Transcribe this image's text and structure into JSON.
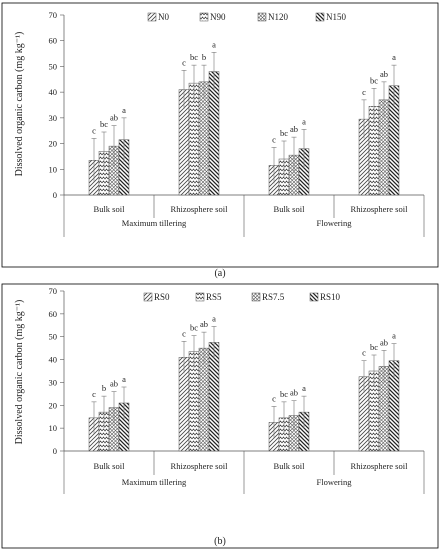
{
  "chart_data": [
    {
      "type": "bar",
      "panel_label": "(a)",
      "ylabel": "Dissolved organic carbon (mg kg⁻¹)",
      "ylim": [
        0,
        70
      ],
      "yticks": [
        0,
        10,
        20,
        30,
        40,
        50,
        60,
        70
      ],
      "categories": [
        "Bulk soil",
        "Rhizosphere soil",
        "Bulk soil",
        "Rhizosphere soil"
      ],
      "groups": [
        {
          "label": "Maximum tillering",
          "span": [
            0,
            1
          ]
        },
        {
          "label": "Flowering",
          "span": [
            2,
            3
          ]
        }
      ],
      "legend_position": "top-right",
      "series": [
        {
          "name": "N0",
          "pattern": "diag-left",
          "values": [
            13.5,
            41,
            11.5,
            29.5
          ],
          "errors": [
            8.5,
            7.5,
            7,
            7.5
          ],
          "letters": [
            "c",
            "c",
            "c",
            "c"
          ]
        },
        {
          "name": "N90",
          "pattern": "zigzag",
          "values": [
            17,
            43.5,
            14,
            34.5
          ],
          "errors": [
            7.5,
            7,
            7,
            7
          ],
          "letters": [
            "bc",
            "bc",
            "bc",
            "bc"
          ]
        },
        {
          "name": "N120",
          "pattern": "grid",
          "values": [
            19,
            44,
            15.5,
            37
          ],
          "errors": [
            8,
            6.5,
            7,
            7
          ],
          "letters": [
            "ab",
            "b",
            "ab",
            "ab"
          ]
        },
        {
          "name": "N150",
          "pattern": "diag-right",
          "values": [
            21.5,
            48,
            18,
            42.5
          ],
          "errors": [
            8.5,
            7.5,
            7.5,
            8
          ],
          "letters": [
            "a",
            "a",
            "a",
            "a"
          ]
        }
      ]
    },
    {
      "type": "bar",
      "panel_label": "(b)",
      "ylabel": "Dissolved organic carbon (mg kg⁻¹)",
      "ylim": [
        0,
        70
      ],
      "yticks": [
        0,
        10,
        20,
        30,
        40,
        50,
        60,
        70
      ],
      "categories": [
        "Bulk soil",
        "Rhizosphere soil",
        "Bulk soil",
        "Rhizosphere soil"
      ],
      "groups": [
        {
          "label": "Maximum tillering",
          "span": [
            0,
            1
          ]
        },
        {
          "label": "Flowering",
          "span": [
            2,
            3
          ]
        }
      ],
      "legend_position": "top",
      "series": [
        {
          "name": "RS0",
          "pattern": "diag-left",
          "values": [
            14.5,
            41,
            12.5,
            32.5
          ],
          "errors": [
            7,
            7,
            7,
            7
          ],
          "letters": [
            "c",
            "c",
            "c",
            "c"
          ]
        },
        {
          "name": "RS5",
          "pattern": "zigzag",
          "values": [
            17,
            43.5,
            14.5,
            35
          ],
          "errors": [
            7,
            7,
            7,
            7
          ],
          "letters": [
            "b",
            "bc",
            "bc",
            "bc"
          ]
        },
        {
          "name": "RS7.5",
          "pattern": "grid",
          "values": [
            19,
            45,
            15.5,
            37
          ],
          "errors": [
            7,
            7,
            6.5,
            7
          ],
          "letters": [
            "ab",
            "ab",
            "ab",
            "ab"
          ]
        },
        {
          "name": "RS10",
          "pattern": "diag-right",
          "values": [
            21,
            47.5,
            17,
            39.5
          ],
          "errors": [
            7,
            7,
            7,
            7.5
          ],
          "letters": [
            "a",
            "a",
            "a",
            "a"
          ]
        }
      ]
    }
  ]
}
